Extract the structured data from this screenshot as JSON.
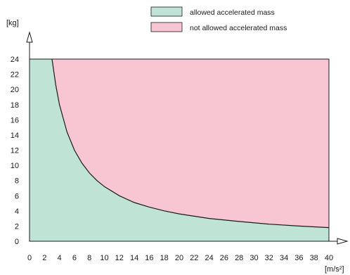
{
  "colors": {
    "allowed": "#bfe3d4",
    "not_allowed": "#f7c6d2",
    "line": "#1a1a1a"
  },
  "chart_data": {
    "type": "area",
    "title": "",
    "xlabel": "[m/s²]",
    "ylabel": "[kg]",
    "xlim": [
      0,
      40
    ],
    "ylim": [
      0,
      24
    ],
    "x_ticks": [
      0,
      2,
      4,
      6,
      8,
      10,
      12,
      14,
      16,
      18,
      20,
      22,
      24,
      26,
      28,
      30,
      32,
      34,
      36,
      38,
      40
    ],
    "y_ticks": [
      0,
      2,
      4,
      6,
      8,
      10,
      12,
      14,
      16,
      18,
      20,
      22,
      24
    ],
    "grid": false,
    "legend_placement": "top-center",
    "series": [
      {
        "name": "allowed accelerated mass",
        "region": "below curve",
        "color": "#bfe3d4"
      },
      {
        "name": "not allowed accelerated mass",
        "region": "above curve",
        "color": "#f7c6d2"
      }
    ],
    "boundary": {
      "x": [
        3,
        3.5,
        4,
        5,
        6,
        7,
        8,
        9,
        10,
        12,
        14,
        16,
        18,
        20,
        24,
        28,
        32,
        36,
        40
      ],
      "y": [
        24,
        20.6,
        18,
        14.4,
        12,
        10.3,
        9,
        8,
        7.2,
        6,
        5.1,
        4.5,
        4,
        3.6,
        3,
        2.6,
        2.25,
        2,
        1.8
      ]
    }
  }
}
